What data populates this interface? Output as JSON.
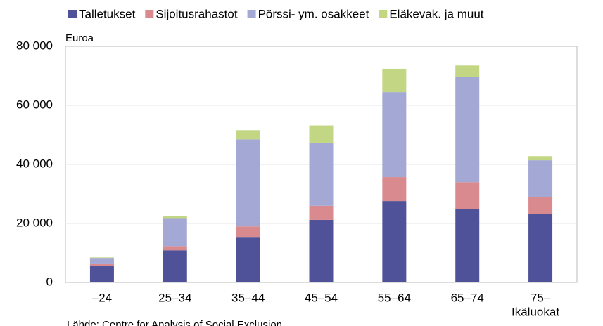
{
  "chart_data": {
    "type": "stacked_bar",
    "y_axis_label": "Euroa",
    "x_axis_label": "Ikäluokat",
    "source": "Lähde: Centre for Analysis of Social Exclusion",
    "categories": [
      "–24",
      "25–34",
      "35–44",
      "45–54",
      "55–64",
      "65–74",
      "75–"
    ],
    "series": [
      {
        "name": "Talletukset",
        "color": "#4f5298",
        "values": [
          5700,
          10900,
          15200,
          21200,
          27600,
          25000,
          23300
        ]
      },
      {
        "name": "Sijoitusrahastot",
        "color": "#d98a8e",
        "values": [
          500,
          1400,
          3800,
          4800,
          8100,
          9000,
          5700
        ]
      },
      {
        "name": "Pörssi- ym. osakkeet",
        "color": "#a3a8d4",
        "values": [
          2100,
          9500,
          29500,
          21200,
          28800,
          35700,
          12400
        ]
      },
      {
        "name": "Eläkevak. ja muut",
        "color": "#c3d683",
        "values": [
          200,
          700,
          3100,
          6000,
          7900,
          3800,
          1400
        ]
      }
    ],
    "ylim": [
      0,
      80000
    ],
    "yticks": [
      0,
      {
        "value": 20000,
        "label": "20 000"
      },
      {
        "value": 40000,
        "label": "40 000"
      },
      {
        "value": 60000,
        "label": "60 000"
      },
      {
        "value": 80000,
        "label": "80 000"
      }
    ],
    "grid": true
  }
}
